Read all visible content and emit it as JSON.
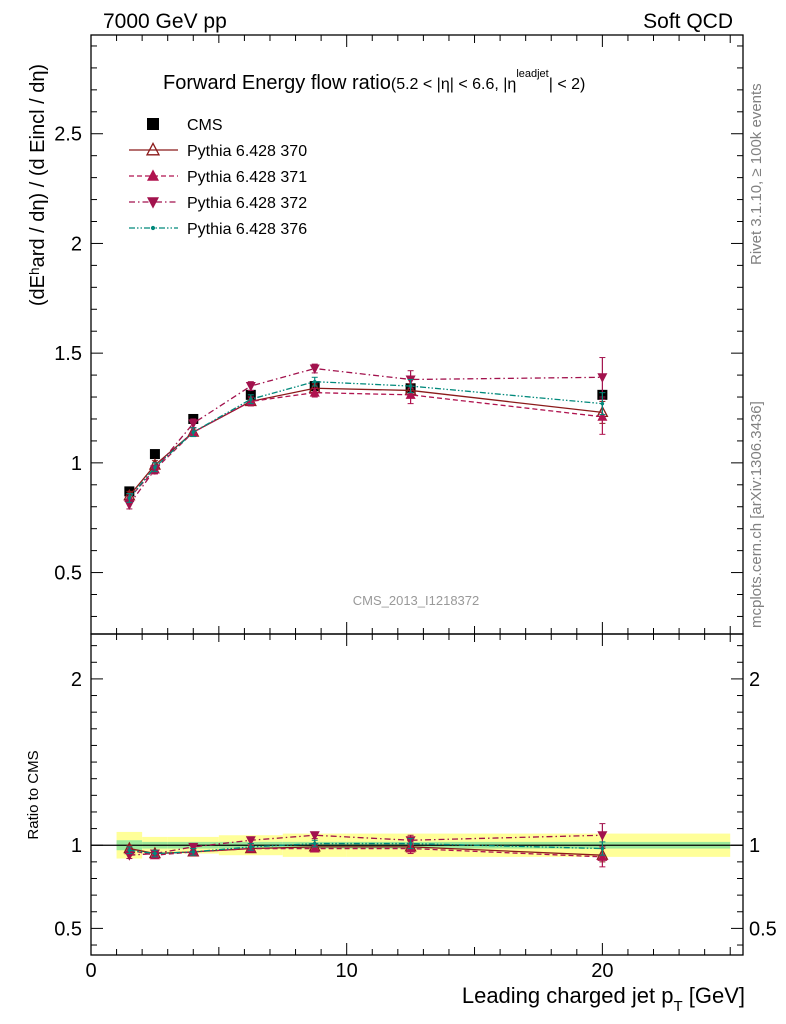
{
  "header": {
    "left": "7000 GeV pp",
    "right": "Soft QCD"
  },
  "title_main": "Forward Energy flow ratio",
  "title_sub_1": "(5.2 < |η| < 6.6, |η",
  "title_sup": "leadjet",
  "title_sub_2": "| < 2)",
  "side_text_top": "Rivet 3.1.10, ≥ 100k events",
  "side_text_bottom": "mcplots.cern.ch [arXiv:1306.3436]",
  "analysis_id": "CMS_2013_I1218372",
  "ylabel_main": "(dEʰard / dη) / (d Eincl / dη)",
  "ylabel_ratio": "Ratio to CMS",
  "xlabel": "Leading charged jet p_T [GeV]",
  "chart_data": [
    {
      "type": "scatter",
      "panel": "main",
      "xlim": [
        0,
        25.5
      ],
      "ylim": [
        0.22,
        2.95
      ],
      "yticks": [
        0.5,
        1,
        1.5,
        2,
        2.5
      ],
      "ytick_labels": [
        "0.5",
        "1",
        "1.5",
        "2",
        "2.5"
      ],
      "x": [
        1.5,
        2.5,
        4.0,
        6.25,
        8.75,
        12.5,
        20.0
      ],
      "legend": [
        "CMS",
        "Pythia 6.428 370",
        "Pythia 6.428 371",
        "Pythia 6.428 372",
        "Pythia 6.428 376"
      ],
      "series": [
        {
          "name": "CMS",
          "color": "#000000",
          "marker": "square",
          "line": "none",
          "values": [
            0.87,
            1.04,
            1.2,
            1.31,
            1.35,
            1.34,
            1.31
          ]
        },
        {
          "name": "Pythia 6.428 370",
          "color": "#8b1a1a",
          "marker": "triangle-up-open",
          "line": "solid",
          "values": [
            0.85,
            0.99,
            1.14,
            1.28,
            1.34,
            1.33,
            1.23
          ],
          "errors": [
            0.02,
            0.02,
            0.02,
            0.02,
            0.02,
            0.03,
            0.05
          ]
        },
        {
          "name": "Pythia 6.428 371",
          "color": "#b0134f",
          "marker": "triangle-up",
          "line": "dashed",
          "values": [
            0.84,
            0.97,
            1.14,
            1.28,
            1.32,
            1.31,
            1.21
          ],
          "errors": [
            0.02,
            0.02,
            0.02,
            0.02,
            0.02,
            0.04,
            0.08
          ]
        },
        {
          "name": "Pythia 6.428 372",
          "color": "#a2124d",
          "marker": "triangle-down",
          "line": "dashdot",
          "values": [
            0.81,
            0.97,
            1.18,
            1.35,
            1.43,
            1.38,
            1.39
          ],
          "errors": [
            0.02,
            0.02,
            0.02,
            0.02,
            0.02,
            0.04,
            0.09
          ]
        },
        {
          "name": "Pythia 6.428 376",
          "color": "#00897b",
          "marker": "dot",
          "line": "dashdotdot",
          "values": [
            0.84,
            0.98,
            1.14,
            1.29,
            1.37,
            1.35,
            1.27
          ],
          "errors": [
            0.02,
            0.02,
            0.02,
            0.02,
            0.02,
            0.03,
            0.05
          ]
        }
      ]
    },
    {
      "type": "scatter",
      "panel": "ratio",
      "xlim": [
        0,
        25.5
      ],
      "xticks": [
        0,
        10,
        20
      ],
      "xtick_labels": [
        "0",
        "10",
        "20"
      ],
      "ylim": [
        0.34,
        2.27
      ],
      "yticks": [
        0.5,
        1,
        2
      ],
      "ytick_labels": [
        "0.5",
        "1",
        "2"
      ],
      "x": [
        1.5,
        2.5,
        4.0,
        6.25,
        8.75,
        12.5,
        20.0
      ],
      "bands": {
        "edges": [
          1,
          2,
          3,
          5,
          7.5,
          10,
          15,
          25
        ],
        "inner_halfwidth": [
          0.03,
          0.02,
          0.02,
          0.02,
          0.02,
          0.02,
          0.02
        ],
        "outer_halfwidth": [
          0.08,
          0.05,
          0.05,
          0.06,
          0.07,
          0.07,
          0.07
        ],
        "inner_color": "#9be89b",
        "outer_color": "#ffff99"
      },
      "series": [
        {
          "name": "Pythia 6.428 370",
          "color": "#8b1a1a",
          "values": [
            0.98,
            0.95,
            0.96,
            0.98,
            0.99,
            0.99,
            0.94
          ],
          "errors": [
            0.02,
            0.02,
            0.02,
            0.02,
            0.02,
            0.03,
            0.04
          ]
        },
        {
          "name": "Pythia 6.428 371",
          "color": "#b0134f",
          "values": [
            0.97,
            0.94,
            0.96,
            0.98,
            0.98,
            0.98,
            0.93
          ],
          "errors": [
            0.02,
            0.02,
            0.02,
            0.02,
            0.02,
            0.03,
            0.06
          ]
        },
        {
          "name": "Pythia 6.428 372",
          "color": "#a2124d",
          "values": [
            0.94,
            0.95,
            0.99,
            1.03,
            1.06,
            1.03,
            1.06
          ],
          "errors": [
            0.02,
            0.02,
            0.02,
            0.02,
            0.02,
            0.03,
            0.07
          ]
        },
        {
          "name": "Pythia 6.428 376",
          "color": "#00897b",
          "values": [
            0.97,
            0.95,
            0.96,
            0.99,
            1.01,
            1.01,
            0.98
          ],
          "errors": [
            0.02,
            0.02,
            0.02,
            0.02,
            0.02,
            0.03,
            0.04
          ]
        }
      ]
    }
  ]
}
